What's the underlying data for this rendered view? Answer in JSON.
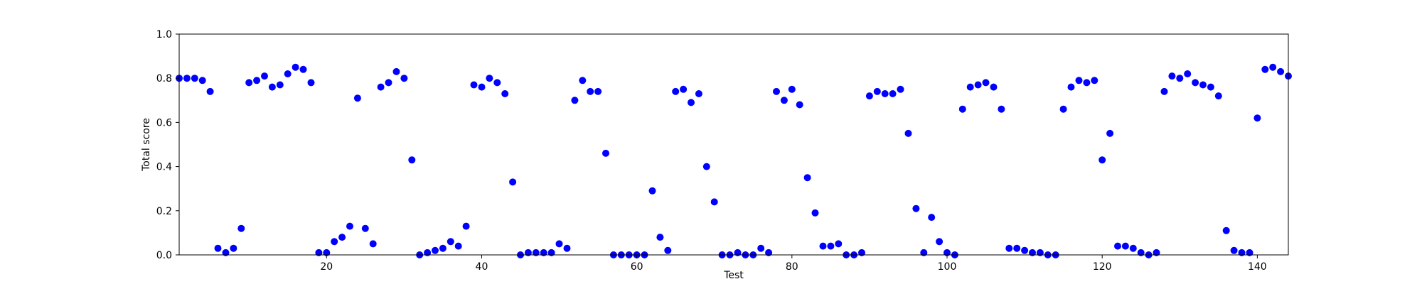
{
  "chart_data": {
    "type": "scatter",
    "title": "",
    "xlabel": "Test",
    "ylabel": "Total score",
    "xlim": [
      1,
      144
    ],
    "ylim": [
      0.0,
      1.0
    ],
    "x_ticks": [
      20,
      40,
      60,
      80,
      100,
      120,
      140
    ],
    "y_ticks": [
      0.0,
      0.2,
      0.4,
      0.6,
      0.8,
      1.0
    ],
    "x_tick_labels": [
      "20",
      "40",
      "60",
      "80",
      "100",
      "120",
      "140"
    ],
    "y_tick_labels": [
      "0.0",
      "0.2",
      "0.4",
      "0.6",
      "0.8",
      "1.0"
    ],
    "grid": false,
    "marker_color": "#0000ff",
    "series": [
      {
        "x": [
          1,
          2,
          3,
          4,
          5,
          6,
          7,
          8,
          9,
          10,
          11,
          12,
          13,
          14,
          15,
          16,
          17,
          18,
          19,
          20,
          21,
          22,
          23,
          24,
          25,
          26,
          27,
          28,
          29,
          30,
          31,
          32,
          33,
          34,
          35,
          36,
          37,
          38,
          39,
          40,
          41,
          42,
          43,
          44,
          45,
          46,
          47,
          48,
          49,
          50,
          51,
          52,
          53,
          54,
          55,
          56,
          57,
          58,
          59,
          60,
          61,
          62,
          63,
          64,
          65,
          66,
          67,
          68,
          69,
          70,
          71,
          72,
          73,
          74,
          75,
          76,
          77,
          78,
          79,
          80,
          81,
          82,
          83,
          84,
          85,
          86,
          87,
          88,
          89,
          90,
          91,
          92,
          93,
          94,
          95,
          96,
          97,
          98,
          99,
          100,
          101,
          102,
          103,
          104,
          105,
          106,
          107,
          108,
          109,
          110,
          111,
          112,
          113,
          114,
          115,
          116,
          117,
          118,
          119,
          120,
          121,
          122,
          123,
          124,
          125,
          126,
          127,
          128,
          129,
          130,
          131,
          132,
          133,
          134,
          135,
          136,
          137,
          138,
          139,
          140,
          141,
          142,
          143,
          144
        ],
        "y": [
          0.8,
          0.8,
          0.8,
          0.79,
          0.74,
          0.03,
          0.01,
          0.03,
          0.12,
          0.78,
          0.79,
          0.81,
          0.76,
          0.77,
          0.82,
          0.85,
          0.84,
          0.78,
          0.01,
          0.01,
          0.06,
          0.08,
          0.13,
          0.71,
          0.12,
          0.05,
          0.76,
          0.78,
          0.83,
          0.8,
          0.43,
          0.0,
          0.01,
          0.02,
          0.03,
          0.06,
          0.04,
          0.13,
          0.77,
          0.76,
          0.8,
          0.78,
          0.73,
          0.33,
          0.0,
          0.01,
          0.01,
          0.01,
          0.01,
          0.05,
          0.03,
          0.7,
          0.79,
          0.74,
          0.74,
          0.46,
          0.0,
          0.0,
          0.0,
          0.0,
          0.0,
          0.29,
          0.08,
          0.02,
          0.74,
          0.75,
          0.69,
          0.73,
          0.4,
          0.24,
          0.0,
          0.0,
          0.01,
          0.0,
          0.0,
          0.03,
          0.01,
          0.74,
          0.7,
          0.75,
          0.68,
          0.35,
          0.19,
          0.04,
          0.04,
          0.05,
          0.0,
          0.0,
          0.01,
          0.72,
          0.74,
          0.73,
          0.73,
          0.75,
          0.55,
          0.21,
          0.01,
          0.17,
          0.06,
          0.01,
          0.0,
          0.66,
          0.76,
          0.77,
          0.78,
          0.76,
          0.66,
          0.03,
          0.03,
          0.02,
          0.01,
          0.01,
          0.0,
          0.0,
          0.66,
          0.76,
          0.79,
          0.78,
          0.79,
          0.43,
          0.55,
          0.04,
          0.04,
          0.03,
          0.01,
          0.0,
          0.01,
          0.74,
          0.81,
          0.8,
          0.82,
          0.78,
          0.77,
          0.76,
          0.72,
          0.11,
          0.02,
          0.01,
          0.01,
          0.62,
          0.84,
          0.85,
          0.83,
          0.81
        ]
      }
    ]
  }
}
